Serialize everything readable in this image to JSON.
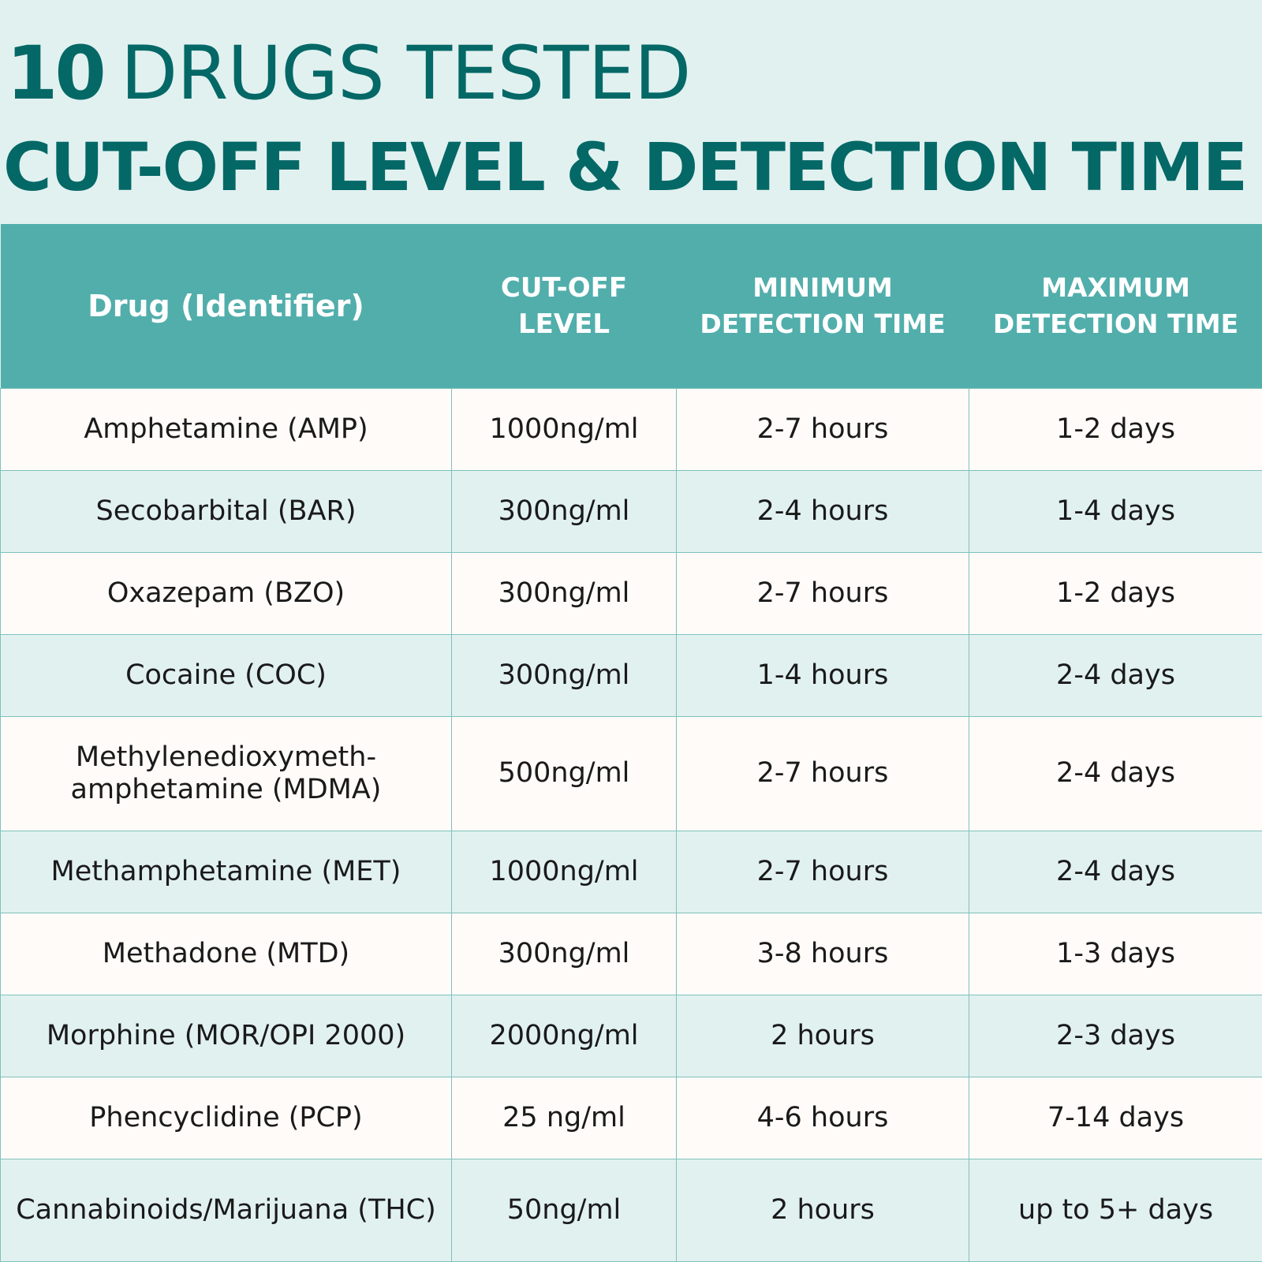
{
  "title": {
    "number": "10",
    "line1_rest": "DRUGS TESTED",
    "line2": "CUT-OFF LEVEL & DETECTION TIME"
  },
  "table": {
    "headers": {
      "drug": "Drug (Identifier)",
      "cutoff": "CUT-OFF LEVEL",
      "min": "MINIMUM DETECTION TIME",
      "max": "MAXIMUM DETECTION TIME"
    },
    "rows": [
      {
        "drug": "Amphetamine (AMP)",
        "cutoff": "1000ng/ml",
        "min": "2-7 hours",
        "max": "1-2 days"
      },
      {
        "drug": "Secobarbital (BAR)",
        "cutoff": "300ng/ml",
        "min": "2-4 hours",
        "max": "1-4 days"
      },
      {
        "drug": "Oxazepam (BZO)",
        "cutoff": "300ng/ml",
        "min": "2-7 hours",
        "max": "1-2 days"
      },
      {
        "drug": "Cocaine (COC)",
        "cutoff": "300ng/ml",
        "min": "1-4 hours",
        "max": "2-4 days"
      },
      {
        "drug": "Methylenedioxymeth-amphetamine (MDMA)",
        "cutoff": "500ng/ml",
        "min": "2-7 hours",
        "max": "2-4 days"
      },
      {
        "drug": "Methamphetamine (MET)",
        "cutoff": "1000ng/ml",
        "min": "2-7 hours",
        "max": "2-4 days"
      },
      {
        "drug": "Methadone (MTD)",
        "cutoff": "300ng/ml",
        "min": "3-8 hours",
        "max": "1-3 days"
      },
      {
        "drug": "Morphine (MOR/OPI 2000)",
        "cutoff": "2000ng/ml",
        "min": "2 hours",
        "max": "2-3 days"
      },
      {
        "drug": "Phencyclidine (PCP)",
        "cutoff": "25 ng/ml",
        "min": "4-6 hours",
        "max": "7-14 days"
      },
      {
        "drug": "Cannabinoids/Marijuana (THC)",
        "cutoff": "50ng/ml",
        "min": "2 hours",
        "max": "up to 5+ days"
      }
    ]
  },
  "colors": {
    "title": "#046866",
    "header_bg": "#51aeab",
    "row_light": "#fefbf8",
    "row_tint": "#e1f1f0",
    "page_bg": "#e1f1f0"
  }
}
